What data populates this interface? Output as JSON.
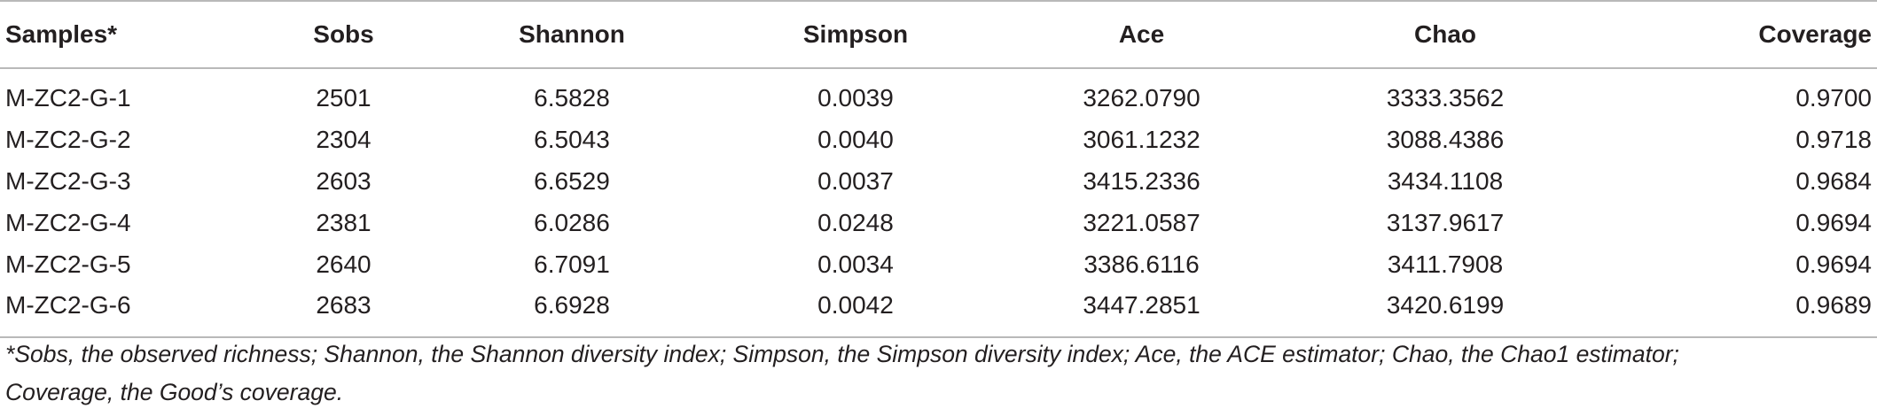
{
  "table": {
    "headers": [
      "Samples*",
      "Sobs",
      "Shannon",
      "Simpson",
      "Ace",
      "Chao",
      "Coverage"
    ],
    "rows": [
      [
        "M-ZC2-G-1",
        "2501",
        "6.5828",
        "0.0039",
        "3262.0790",
        "3333.3562",
        "0.9700"
      ],
      [
        "M-ZC2-G-2",
        "2304",
        "6.5043",
        "0.0040",
        "3061.1232",
        "3088.4386",
        "0.9718"
      ],
      [
        "M-ZC2-G-3",
        "2603",
        "6.6529",
        "0.0037",
        "3415.2336",
        "3434.1108",
        "0.9684"
      ],
      [
        "M-ZC2-G-4",
        "2381",
        "6.0286",
        "0.0248",
        "3221.0587",
        "3137.9617",
        "0.9694"
      ],
      [
        "M-ZC2-G-5",
        "2640",
        "6.7091",
        "0.0034",
        "3386.6116",
        "3411.7908",
        "0.9694"
      ],
      [
        "M-ZC2-G-6",
        "2683",
        "6.6928",
        "0.0042",
        "3447.2851",
        "3420.6199",
        "0.9689"
      ]
    ]
  },
  "footnote": {
    "line1": "*Sobs, the observed richness; Shannon, the Shannon diversity index; Simpson, the Simpson diversity index; Ace, the ACE estimator; Chao, the Chao1 estimator;",
    "line2": "Coverage, the Good’s coverage."
  }
}
